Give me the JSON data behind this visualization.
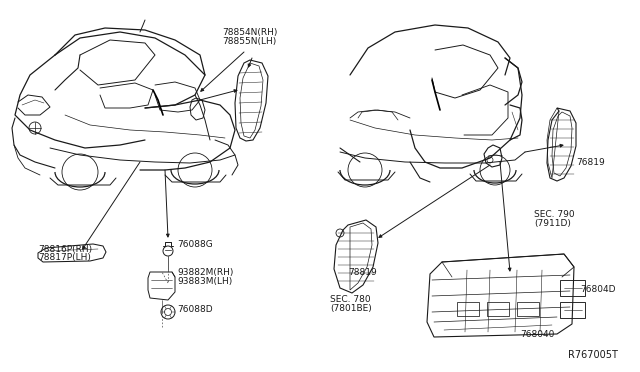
{
  "bg_color": "#ffffff",
  "line_color": "#1a1a1a",
  "label_color": "#1a1a1a",
  "diagram_ref": "R767005T",
  "labels": {
    "part1": "78854N(RH)",
    "part1b": "78855N(LH)",
    "part2": "76088G",
    "part3a": "93882M(RH)",
    "part3b": "93883M(LH)",
    "part4": "76088D",
    "part5a": "78816P(RH)",
    "part5b": "78817P(LH)",
    "part6": "76819",
    "part7a": "SEC. 790",
    "part7b": "(7911D)",
    "part8": "76804D",
    "part9": "768040",
    "part10": "78819",
    "part11a": "SEC. 780",
    "part11b": "(7801BE)"
  }
}
